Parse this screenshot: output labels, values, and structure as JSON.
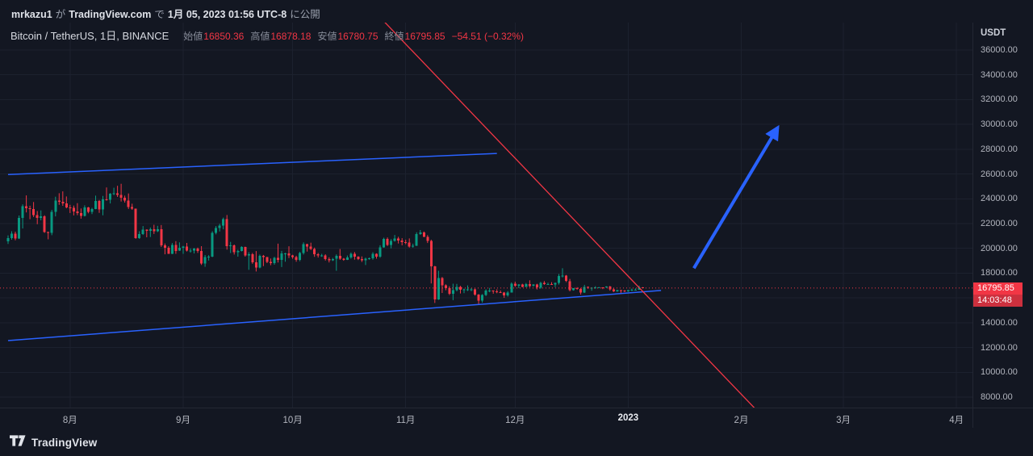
{
  "publish_bar": {
    "username": "mrkazu1",
    "particle1": "が",
    "site": "TradingView.com",
    "particle2": "で",
    "datetime": "1月 05, 2023 01:56 UTC-8",
    "suffix": "に公開"
  },
  "legend": {
    "title": "Bitcoin / TetherUS, 1日, BINANCE",
    "open_label": "始値",
    "open": "16850.36",
    "high_label": "高値",
    "high": "16878.18",
    "low_label": "安値",
    "low": "16780.75",
    "close_label": "終値",
    "close": "16795.85",
    "change": "−54.51 (−0.32%)"
  },
  "price_scale": {
    "currency": "USDT",
    "last_price_label": "16795.85",
    "countdown": "14:03:48",
    "ticks": [
      {
        "value": 36000,
        "label": "36000.00"
      },
      {
        "value": 34000,
        "label": "34000.00"
      },
      {
        "value": 32000,
        "label": "32000.00"
      },
      {
        "value": 30000,
        "label": "30000.00"
      },
      {
        "value": 28000,
        "label": "28000.00"
      },
      {
        "value": 26000,
        "label": "26000.00"
      },
      {
        "value": 24000,
        "label": "24000.00"
      },
      {
        "value": 22000,
        "label": "22000.00"
      },
      {
        "value": 20000,
        "label": "20000.00"
      },
      {
        "value": 18000,
        "label": "18000.00"
      },
      {
        "value": 16000,
        "label": "16000.00"
      },
      {
        "value": 14000,
        "label": "14000.00"
      },
      {
        "value": 12000,
        "label": "12000.00"
      },
      {
        "value": 10000,
        "label": "10000.00"
      },
      {
        "value": 8000,
        "label": "8000.00"
      }
    ]
  },
  "time_axis": {
    "labels": [
      {
        "label": "8月",
        "index": 17,
        "strong": false
      },
      {
        "label": "9月",
        "index": 48,
        "strong": false
      },
      {
        "label": "10月",
        "index": 78,
        "strong": false
      },
      {
        "label": "11月",
        "index": 109,
        "strong": false
      },
      {
        "label": "12月",
        "index": 139,
        "strong": false
      },
      {
        "label": "2023",
        "index": 170,
        "strong": true
      },
      {
        "label": "2月",
        "index": 201,
        "strong": false
      },
      {
        "label": "3月",
        "index": 229,
        "strong": false
      },
      {
        "label": "4月",
        "index": 260,
        "strong": false
      }
    ]
  },
  "footer": {
    "brand": "TradingView"
  },
  "chart_data": {
    "type": "candlestick",
    "symbol": "Bitcoin / TetherUS",
    "exchange": "BINANCE",
    "interval": "1日",
    "start_date": "2022-07-15",
    "visible_ylim": [
      6500,
      37800
    ],
    "tick_step": 2000,
    "price_line": 16795.85,
    "last_bar": {
      "open": 16850.36,
      "high": 16878.18,
      "low": 16780.75,
      "close": 16795.85,
      "change": -54.51,
      "change_pct": -0.32
    },
    "countdown": "14:03:48",
    "colors": {
      "up": "#089981",
      "down": "#f23645",
      "drawing_blue": "#2962ff",
      "drawing_red": "#f23645",
      "price_line": "#f23645",
      "grid": "#1c212e"
    },
    "drawings": [
      {
        "type": "trendline",
        "color": "blue",
        "from": [
          0,
          25950
        ],
        "to": [
          134,
          27660
        ]
      },
      {
        "type": "trendline",
        "color": "blue",
        "from": [
          0,
          12560
        ],
        "to": [
          179,
          16600
        ]
      },
      {
        "type": "trendline",
        "color": "red",
        "from": [
          100,
          39250
        ],
        "to": [
          206,
          6700
        ]
      },
      {
        "type": "arrow",
        "color": "blue",
        "from": [
          188,
          18400
        ],
        "to": [
          211,
          29750
        ]
      }
    ],
    "candles": [
      [
        20550,
        21050,
        20350,
        20820
      ],
      [
        20820,
        21380,
        20700,
        21200
      ],
      [
        21200,
        21350,
        20650,
        20800
      ],
      [
        20800,
        22650,
        20750,
        22450
      ],
      [
        22450,
        23550,
        21600,
        23400
      ],
      [
        23400,
        24270,
        22900,
        23230
      ],
      [
        23230,
        23440,
        22350,
        23160
      ],
      [
        23160,
        23740,
        22530,
        22690
      ],
      [
        22690,
        23010,
        21950,
        22450
      ],
      [
        22450,
        23060,
        22260,
        22600
      ],
      [
        22600,
        22670,
        21250,
        21310
      ],
      [
        21310,
        21340,
        20730,
        21250
      ],
      [
        21250,
        23110,
        21060,
        22930
      ],
      [
        22930,
        24170,
        22580,
        23840
      ],
      [
        23840,
        24450,
        23510,
        23770
      ],
      [
        23770,
        24600,
        23430,
        23640
      ],
      [
        23640,
        24190,
        23230,
        23300
      ],
      [
        23300,
        23510,
        22850,
        23270
      ],
      [
        23270,
        23450,
        22660,
        22980
      ],
      [
        22980,
        23650,
        22680,
        22850
      ],
      [
        22850,
        23220,
        22400,
        22620
      ],
      [
        22620,
        23470,
        22570,
        23310
      ],
      [
        23310,
        23340,
        22830,
        22950
      ],
      [
        22950,
        23270,
        22760,
        23180
      ],
      [
        23180,
        24250,
        23150,
        23810
      ],
      [
        23810,
        23900,
        22860,
        23150
      ],
      [
        23150,
        24230,
        22670,
        23950
      ],
      [
        23950,
        24920,
        23850,
        23930
      ],
      [
        23930,
        24460,
        23620,
        24400
      ],
      [
        24400,
        24890,
        24300,
        24440
      ],
      [
        24440,
        25050,
        24150,
        24300
      ],
      [
        24300,
        25210,
        23780,
        24090
      ],
      [
        24090,
        24250,
        23690,
        23850
      ],
      [
        23850,
        24430,
        23180,
        23340
      ],
      [
        23340,
        23600,
        23110,
        23190
      ],
      [
        23190,
        23210,
        20770,
        20830
      ],
      [
        20830,
        21380,
        20760,
        21140
      ],
      [
        21140,
        21800,
        21080,
        21520
      ],
      [
        21520,
        21530,
        20890,
        21400
      ],
      [
        21400,
        21680,
        20910,
        21530
      ],
      [
        21530,
        21900,
        21160,
        21370
      ],
      [
        21370,
        21820,
        21310,
        21560
      ],
      [
        21560,
        21880,
        20110,
        20240
      ],
      [
        20240,
        20390,
        19520,
        20040
      ],
      [
        20040,
        20170,
        19550,
        19560
      ],
      [
        19560,
        20430,
        19540,
        20290
      ],
      [
        20290,
        20580,
        19560,
        19800
      ],
      [
        19800,
        20480,
        19790,
        20050
      ],
      [
        20050,
        20200,
        19560,
        20130
      ],
      [
        20130,
        20440,
        19750,
        19830
      ],
      [
        19830,
        19990,
        19660,
        19830
      ],
      [
        19830,
        20030,
        19590,
        19990
      ],
      [
        19990,
        20060,
        19630,
        19790
      ],
      [
        19790,
        20180,
        18660,
        18790
      ],
      [
        18790,
        19460,
        18510,
        19290
      ],
      [
        19290,
        19450,
        19020,
        19320
      ],
      [
        19320,
        21380,
        19290,
        21240
      ],
      [
        21240,
        21800,
        21130,
        21650
      ],
      [
        21650,
        21980,
        21360,
        21830
      ],
      [
        21830,
        22480,
        21540,
        22370
      ],
      [
        22370,
        22690,
        19900,
        20170
      ],
      [
        20170,
        20520,
        19620,
        20230
      ],
      [
        20230,
        20310,
        19500,
        19700
      ],
      [
        19700,
        19890,
        19330,
        19800
      ],
      [
        19800,
        20180,
        19750,
        20110
      ],
      [
        20110,
        20140,
        19330,
        19420
      ],
      [
        19420,
        19690,
        18270,
        19540
      ],
      [
        19540,
        19630,
        18750,
        18880
      ],
      [
        18880,
        19780,
        18130,
        18460
      ],
      [
        18460,
        19500,
        18390,
        19400
      ],
      [
        19400,
        19470,
        18570,
        19290
      ],
      [
        19290,
        19310,
        18810,
        18920
      ],
      [
        18920,
        19180,
        18640,
        18800
      ],
      [
        18800,
        19320,
        18680,
        19220
      ],
      [
        19220,
        20380,
        18860,
        19080
      ],
      [
        19080,
        19790,
        18490,
        19590
      ],
      [
        19590,
        19640,
        18920,
        19600
      ],
      [
        19600,
        20170,
        19210,
        19420
      ],
      [
        19420,
        19480,
        19160,
        19310
      ],
      [
        19310,
        19400,
        18920,
        19060
      ],
      [
        19060,
        19720,
        18960,
        19630
      ],
      [
        19630,
        20480,
        19500,
        20340
      ],
      [
        20340,
        20370,
        19740,
        20160
      ],
      [
        20160,
        20460,
        19870,
        19960
      ],
      [
        19960,
        20060,
        19320,
        19530
      ],
      [
        19530,
        19620,
        19260,
        19420
      ],
      [
        19420,
        19560,
        19320,
        19440
      ],
      [
        19440,
        19520,
        19020,
        19130
      ],
      [
        19130,
        19270,
        18860,
        19050
      ],
      [
        19050,
        19230,
        18980,
        19150
      ],
      [
        19150,
        19510,
        18190,
        19380
      ],
      [
        19380,
        19950,
        19070,
        19180
      ],
      [
        19180,
        19220,
        19000,
        19070
      ],
      [
        19070,
        19420,
        19060,
        19260
      ],
      [
        19260,
        19670,
        19160,
        19550
      ],
      [
        19550,
        19700,
        19090,
        19330
      ],
      [
        19330,
        19360,
        19060,
        19120
      ],
      [
        19120,
        19350,
        18900,
        19040
      ],
      [
        19040,
        19250,
        18650,
        19160
      ],
      [
        19160,
        19260,
        19090,
        19200
      ],
      [
        19200,
        19690,
        19080,
        19570
      ],
      [
        19570,
        19600,
        19170,
        19330
      ],
      [
        19330,
        20250,
        19240,
        20080
      ],
      [
        20080,
        20860,
        20050,
        20770
      ],
      [
        20770,
        20880,
        20190,
        20290
      ],
      [
        20290,
        20750,
        20000,
        20600
      ],
      [
        20600,
        21080,
        20540,
        20810
      ],
      [
        20810,
        20930,
        20390,
        20630
      ],
      [
        20630,
        20820,
        20240,
        20490
      ],
      [
        20490,
        20700,
        20330,
        20480
      ],
      [
        20480,
        20800,
        20060,
        20150
      ],
      [
        20150,
        20380,
        20050,
        20210
      ],
      [
        20210,
        21300,
        20190,
        21150
      ],
      [
        21150,
        21480,
        21090,
        21300
      ],
      [
        21300,
        21360,
        20910,
        20920
      ],
      [
        20920,
        21070,
        20430,
        20600
      ],
      [
        20600,
        20700,
        17170,
        18540
      ],
      [
        18540,
        18590,
        15590,
        15880
      ],
      [
        15880,
        18190,
        15840,
        17590
      ],
      [
        17590,
        17690,
        16400,
        17030
      ],
      [
        17030,
        17100,
        16620,
        16800
      ],
      [
        16800,
        16940,
        16230,
        16330
      ],
      [
        16330,
        17150,
        15820,
        16620
      ],
      [
        16620,
        17130,
        16530,
        16900
      ],
      [
        16900,
        16970,
        16360,
        16670
      ],
      [
        16670,
        16750,
        16390,
        16690
      ],
      [
        16690,
        17010,
        16560,
        16700
      ],
      [
        16700,
        16800,
        16550,
        16700
      ],
      [
        16700,
        16750,
        16180,
        16280
      ],
      [
        16280,
        16310,
        15480,
        15780
      ],
      [
        15780,
        16310,
        15620,
        16230
      ],
      [
        16230,
        16700,
        16150,
        16600
      ],
      [
        16600,
        16810,
        16460,
        16600
      ],
      [
        16600,
        16610,
        16340,
        16520
      ],
      [
        16520,
        16690,
        16380,
        16460
      ],
      [
        16460,
        16600,
        16420,
        16440
      ],
      [
        16440,
        16480,
        16010,
        16220
      ],
      [
        16220,
        16550,
        16100,
        16440
      ],
      [
        16440,
        17250,
        16430,
        17160
      ],
      [
        17160,
        17310,
        16880,
        16970
      ],
      [
        16970,
        17110,
        16790,
        17090
      ],
      [
        17090,
        17140,
        16860,
        16890
      ],
      [
        16890,
        17210,
        16880,
        17110
      ],
      [
        17110,
        17420,
        16870,
        16970
      ],
      [
        16970,
        17110,
        16910,
        17090
      ],
      [
        17090,
        17140,
        16680,
        16840
      ],
      [
        16840,
        17300,
        16740,
        17230
      ],
      [
        17230,
        17360,
        17060,
        17130
      ],
      [
        17130,
        17230,
        17090,
        17130
      ],
      [
        17130,
        17270,
        17070,
        17090
      ],
      [
        17090,
        17240,
        16870,
        17210
      ],
      [
        17210,
        17930,
        17080,
        17780
      ],
      [
        17780,
        18390,
        17660,
        17810
      ],
      [
        17810,
        17850,
        17280,
        17360
      ],
      [
        17360,
        17530,
        16530,
        16630
      ],
      [
        16630,
        16800,
        16590,
        16780
      ],
      [
        16780,
        16870,
        16660,
        16740
      ],
      [
        16740,
        16810,
        16270,
        16440
      ],
      [
        16440,
        17060,
        16400,
        16900
      ],
      [
        16900,
        16930,
        16730,
        16820
      ],
      [
        16820,
        16860,
        16580,
        16820
      ],
      [
        16820,
        16950,
        16740,
        16840
      ],
      [
        16840,
        16880,
        16790,
        16850
      ],
      [
        16850,
        16860,
        16710,
        16840
      ],
      [
        16840,
        16950,
        16800,
        16920
      ],
      [
        16920,
        16970,
        16590,
        16700
      ],
      [
        16700,
        16790,
        16470,
        16540
      ],
      [
        16540,
        16660,
        16490,
        16640
      ],
      [
        16640,
        16650,
        16330,
        16600
      ],
      [
        16600,
        16630,
        16470,
        16540
      ],
      [
        16540,
        16630,
        16500,
        16620
      ],
      [
        16620,
        16760,
        16550,
        16670
      ],
      [
        16670,
        16780,
        16600,
        16670
      ],
      [
        16670,
        16990,
        16650,
        16850
      ],
      [
        16850,
        16878,
        16781,
        16796
      ]
    ]
  }
}
